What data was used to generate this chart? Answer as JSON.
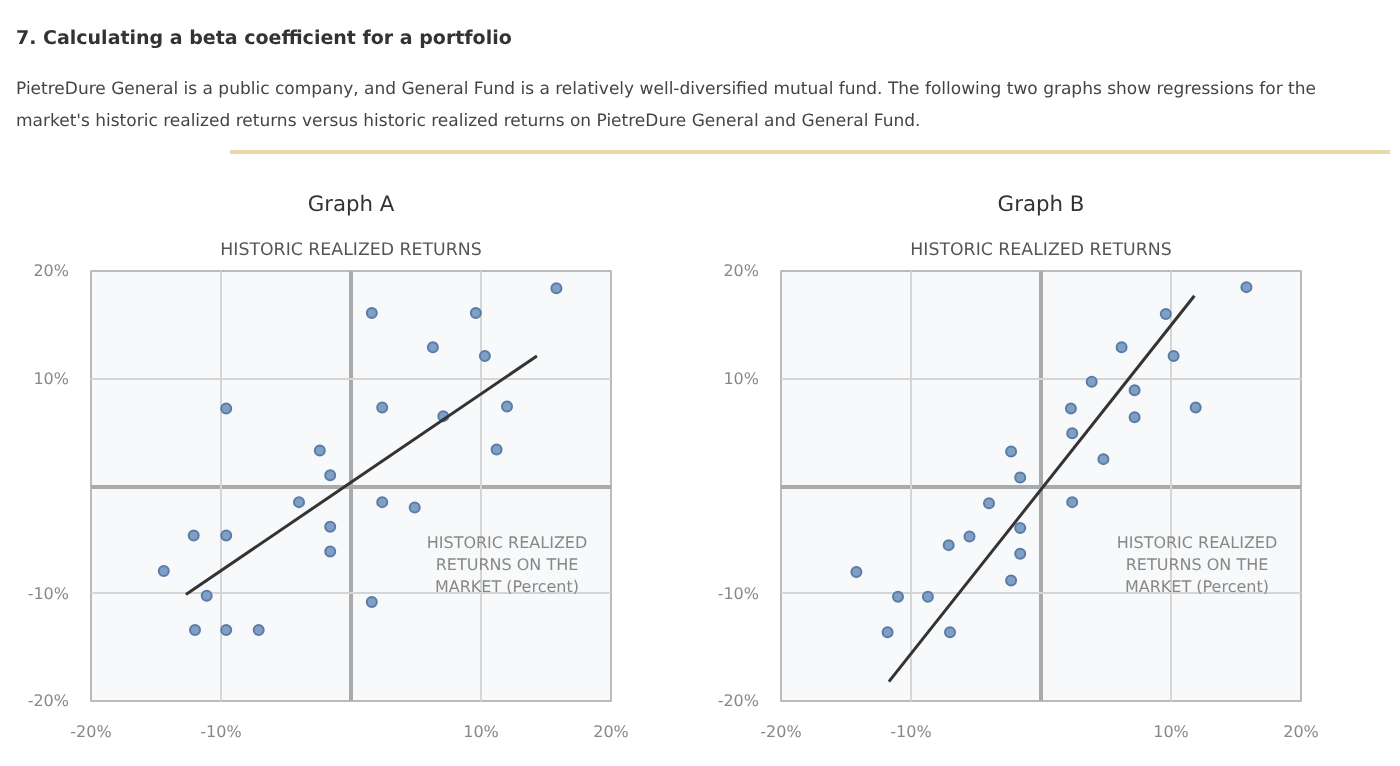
{
  "chart_data": [
    {
      "type": "scatter",
      "subtitle": "Graph A",
      "title": "HISTORIC REALIZED RETURNS",
      "xlabel": "HISTORIC REALIZED RETURNS ON THE MARKET (Percent)",
      "annotations": [
        "7. Calculating a beta coefficient for a portfolio",
        "PietreDure General is a public company, and General Fund is a relatively well-diversified mutual fund. The following two graphs show regressions for the market's historic realized returns versus historic realized returns on PietreDure General and General Fund."
      ],
      "xlim": [
        -20,
        20
      ],
      "ylim": [
        -20,
        20
      ],
      "xticks": [
        {
          "value": -20,
          "label": "-20%"
        },
        {
          "value": -10,
          "label": "-10%"
        },
        {
          "value": 10,
          "label": "10%"
        },
        {
          "value": 20,
          "label": "20%"
        }
      ],
      "yticks": [
        {
          "value": -20,
          "label": "-20%"
        },
        {
          "value": -10,
          "label": "-10%"
        },
        {
          "value": 10,
          "label": "10%"
        },
        {
          "value": 20,
          "label": "20%"
        }
      ],
      "grid": true,
      "marker": "circle",
      "series": [
        {
          "type": "scatter",
          "color": "#7f9fc4",
          "x": [
            15.8,
            1.6,
            9.6,
            6.3,
            10.3,
            -9.6,
            2.4,
            7.1,
            12.0,
            -2.4,
            11.2,
            -1.6,
            -4.0,
            2.4,
            4.9,
            -12.1,
            -9.6,
            -1.6,
            -1.6,
            -14.4,
            -11.1,
            1.6,
            -12.0,
            -9.6,
            -7.1
          ],
          "values": [
            18.4,
            16.1,
            16.1,
            12.9,
            12.1,
            7.2,
            7.3,
            6.5,
            7.4,
            3.3,
            3.4,
            1.0,
            -1.5,
            -1.5,
            -2.0,
            -4.6,
            -4.6,
            -3.8,
            -6.1,
            -7.9,
            -10.2,
            -10.8,
            -13.4,
            -13.4,
            -13.4
          ]
        },
        {
          "type": "line",
          "marker": "none",
          "color": "#333333",
          "x": [
            -12.7,
            14.3
          ],
          "values": [
            -10.1,
            12.1
          ]
        }
      ]
    },
    {
      "type": "scatter",
      "subtitle": "Graph B",
      "title": "HISTORIC REALIZED RETURNS",
      "xlabel": "HISTORIC REALIZED RETURNS ON THE MARKET (Percent)",
      "xlim": [
        -20,
        20
      ],
      "ylim": [
        -20,
        20
      ],
      "xticks": [
        {
          "value": -20,
          "label": "-20%"
        },
        {
          "value": -10,
          "label": "-10%"
        },
        {
          "value": 10,
          "label": "10%"
        },
        {
          "value": 20,
          "label": "20%"
        }
      ],
      "yticks": [
        {
          "value": -20,
          "label": "-20%"
        },
        {
          "value": -10,
          "label": "-10%"
        },
        {
          "value": 10,
          "label": "10%"
        },
        {
          "value": 20,
          "label": "20%"
        }
      ],
      "grid": true,
      "marker": "circle",
      "series": [
        {
          "type": "scatter",
          "color": "#7f9fc4",
          "x": [
            15.8,
            9.6,
            6.2,
            10.2,
            3.9,
            7.2,
            2.3,
            7.2,
            11.9,
            2.4,
            -2.3,
            4.8,
            -1.6,
            -4.0,
            2.4,
            -1.6,
            -5.5,
            -7.1,
            -1.6,
            -14.2,
            -2.3,
            -11.0,
            -8.7,
            -11.8,
            -7.0
          ],
          "values": [
            18.5,
            16.0,
            12.9,
            12.1,
            9.7,
            8.9,
            7.2,
            6.4,
            7.3,
            4.9,
            3.2,
            2.5,
            0.8,
            -1.6,
            -1.5,
            -3.9,
            -4.7,
            -5.5,
            -6.3,
            -8.0,
            -8.8,
            -10.3,
            -10.3,
            -13.6,
            -13.6
          ]
        },
        {
          "type": "line",
          "marker": "none",
          "color": "#333333",
          "x": [
            -11.7,
            11.8
          ],
          "values": [
            -18.2,
            17.7
          ]
        }
      ]
    }
  ]
}
